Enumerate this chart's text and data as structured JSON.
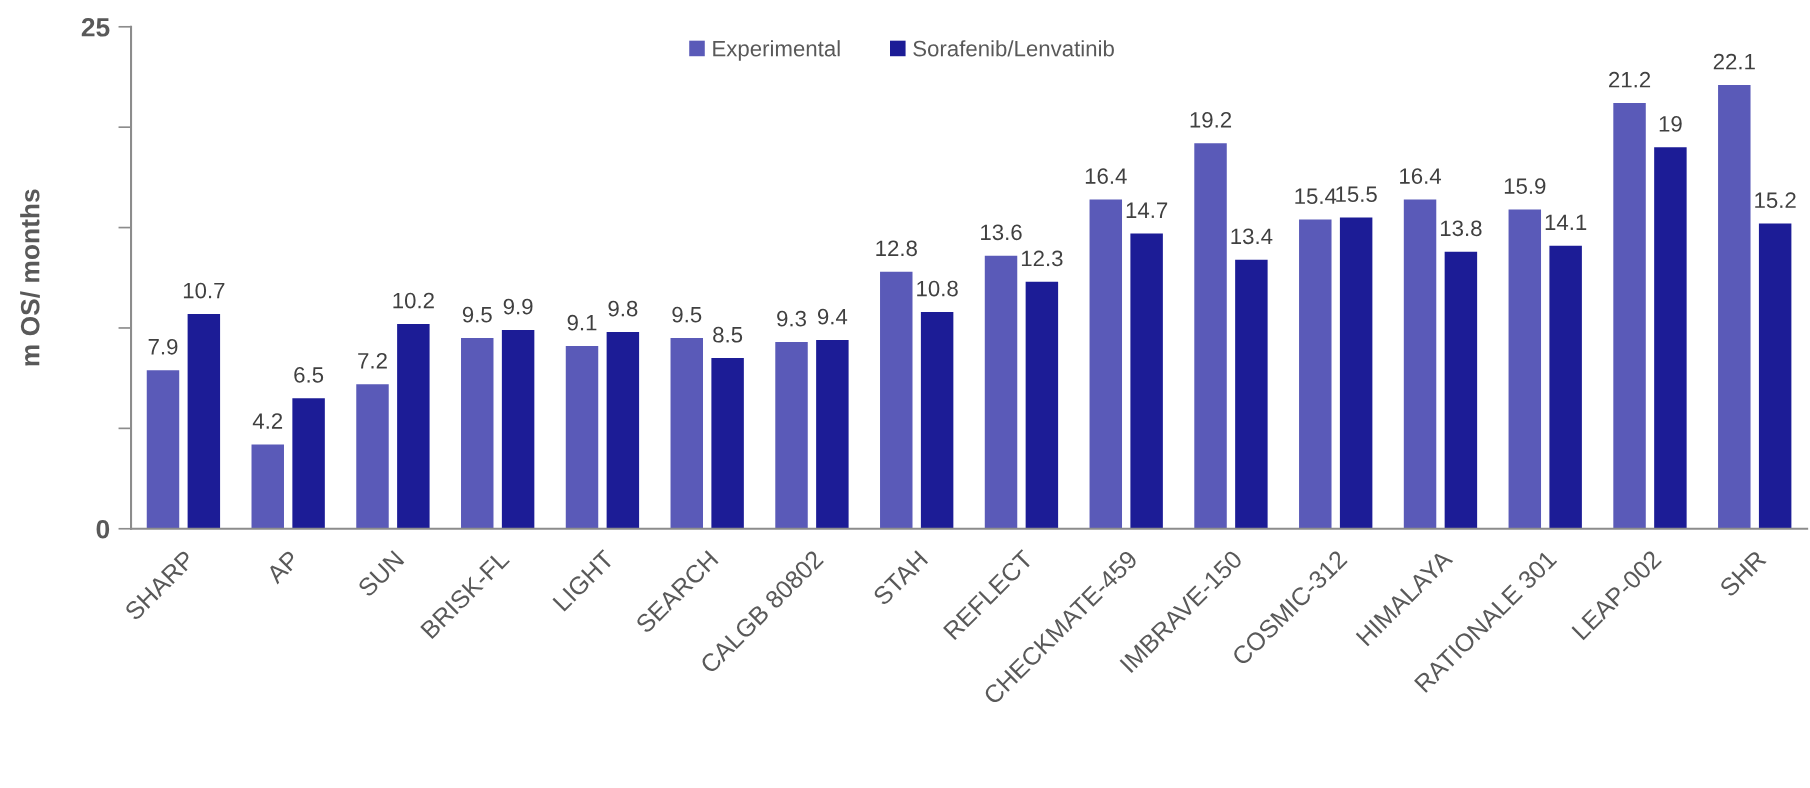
{
  "chart_data": {
    "type": "bar",
    "ylabel": "m OS/ months",
    "categories": [
      "SHARP",
      "AP",
      "SUN",
      "BRISK-FL",
      "LIGHT",
      "SEARCH",
      "CALGB 80802",
      "STAH",
      "REFLECT",
      "CHECKMATE-459",
      "IMBRAVE-150",
      "COSMIC-312",
      "HIMALAYA",
      "RATIONALE 301",
      "LEAP-002",
      "SHR"
    ],
    "series": [
      {
        "name": "Experimental",
        "color": "#5a5ab8",
        "values": [
          7.9,
          4.2,
          7.2,
          9.5,
          9.1,
          9.5,
          9.3,
          12.8,
          13.6,
          16.4,
          19.2,
          15.4,
          16.4,
          15.9,
          21.2,
          22.1
        ]
      },
      {
        "name": "Sorafenib/Lenvatinib",
        "color": "#1c1c96",
        "values": [
          10.7,
          6.5,
          10.2,
          9.9,
          9.8,
          8.5,
          9.4,
          10.8,
          12.3,
          14.7,
          13.4,
          15.5,
          13.8,
          14.1,
          19,
          15.2
        ]
      }
    ],
    "ylim": [
      0,
      25
    ],
    "yticks": [
      0,
      {
        "value": 5,
        "label": null
      },
      {
        "value": 10,
        "label": null
      },
      {
        "value": 15,
        "label": null
      },
      {
        "value": 20,
        "label": null
      },
      25
    ],
    "data_labels": true,
    "grid": false,
    "legend": "top"
  }
}
